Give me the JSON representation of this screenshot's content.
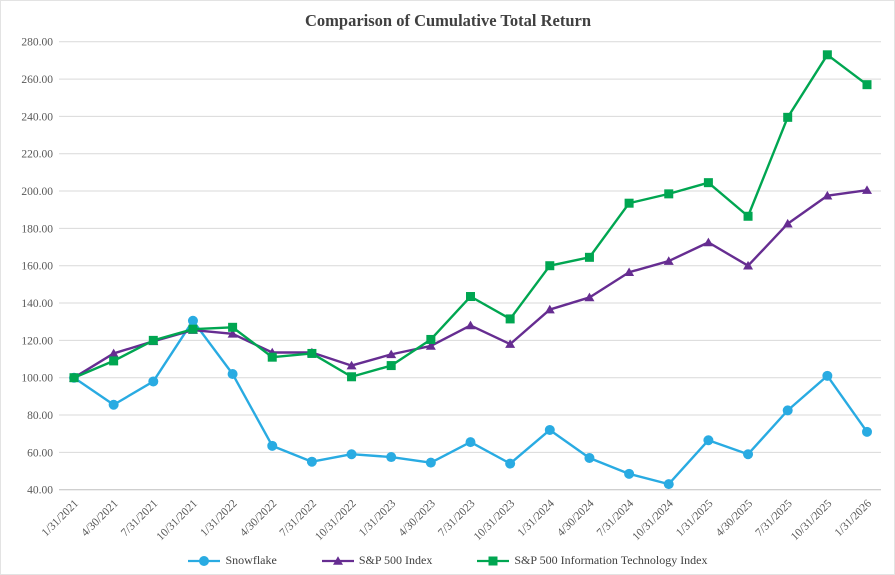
{
  "chart_data": {
    "type": "line",
    "title": "Comparison of Cumulative Total Return",
    "categories": [
      "1/31/2021",
      "4/30/2021",
      "7/31/2021",
      "10/31/2021",
      "1/31/2022",
      "4/30/2022",
      "7/31/2022",
      "10/31/2022",
      "1/31/2023",
      "4/30/2023",
      "7/31/2023",
      "10/31/2023",
      "1/31/2024",
      "4/30/2024",
      "7/31/2024",
      "10/31/2024",
      "1/31/2025",
      "4/30/2025",
      "7/31/2025",
      "10/31/2025",
      "1/31/2026"
    ],
    "y_ticks": [
      "280.00",
      "260.00",
      "240.00",
      "220.00",
      "200.00",
      "180.00",
      "160.00",
      "140.00",
      "120.00",
      "100.00",
      "80.00",
      "60.00",
      "40.00"
    ],
    "ylim": [
      40,
      280
    ],
    "ytick_step": 20,
    "grid": true,
    "legend_position": "bottom",
    "series": [
      {
        "name": "Snowflake",
        "marker": "circle",
        "color": "#29ABE2",
        "values": [
          100,
          85.5,
          98,
          130.5,
          102,
          63.5,
          55,
          59,
          57.5,
          54.5,
          65.5,
          54,
          72,
          57,
          48.5,
          43,
          66.5,
          59,
          82.5,
          101,
          71
        ]
      },
      {
        "name": "S&P 500 Index",
        "marker": "triangle",
        "color": "#662D91",
        "values": [
          100,
          113,
          119.5,
          125.5,
          123.5,
          113.5,
          113.5,
          106.5,
          112.5,
          117,
          128,
          118,
          136.5,
          143,
          156.5,
          162.5,
          172.5,
          160,
          182.5,
          197.5,
          200.5
        ]
      },
      {
        "name": "S&P 500 Information Technology Index",
        "marker": "square",
        "color": "#00A651",
        "values": [
          100,
          109,
          120,
          126,
          127,
          111,
          113,
          100.5,
          106.5,
          120.5,
          143.5,
          131.5,
          160,
          164.5,
          193.5,
          198.5,
          204.5,
          186.5,
          239.5,
          273,
          257
        ]
      }
    ]
  },
  "colors": {
    "gridline": "#D9D9D9",
    "axis_line": "#BFBFBF",
    "tick_text": "#595959",
    "title_text": "#404040",
    "background": "#FFFFFF"
  }
}
